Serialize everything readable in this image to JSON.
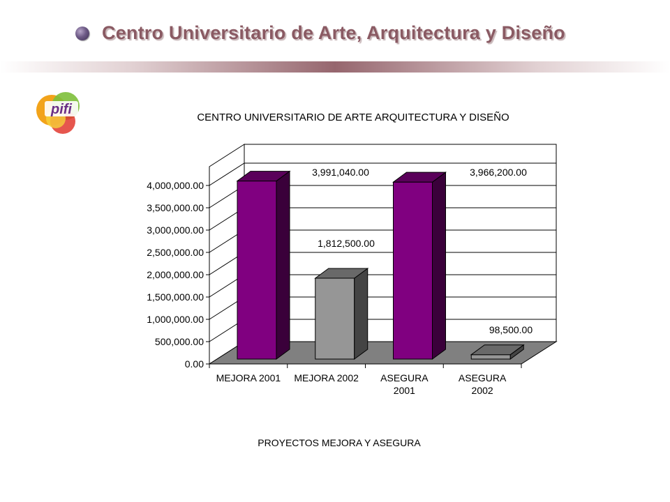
{
  "header": {
    "title": "Centro Universitario de Arte, Arquitectura y Diseño"
  },
  "logo": {
    "text": "pifi",
    "icon": "pifi-logo"
  },
  "colors": {
    "title": "#8a5a63",
    "bar_purple": "#800080",
    "bar_gray": "#969696",
    "floor": "#808080"
  },
  "chart_data": {
    "type": "bar",
    "title": "CENTRO UNIVERSITARIO DE ARTE ARQUITECTURA Y DISEÑO",
    "xlabel": "PROYECTOS MEJORA Y ASEGURA",
    "ylabel": "",
    "categories": [
      "MEJORA 2001",
      "MEJORA 2002",
      "ASEGURA 2001",
      "ASEGURA 2002"
    ],
    "category_lines": [
      [
        "MEJORA 2001"
      ],
      [
        "MEJORA 2002"
      ],
      [
        "ASEGURA",
        "2001"
      ],
      [
        "ASEGURA",
        "2002"
      ]
    ],
    "values": [
      3991040,
      1812500,
      3966200,
      98500
    ],
    "value_labels": [
      "3,991,040.00",
      "1,812,500.00",
      "3,966,200.00",
      "98,500.00"
    ],
    "bar_colors": [
      "#800080",
      "#969696",
      "#800080",
      "#969696"
    ],
    "ylim": [
      0,
      4000000
    ],
    "yticks": [
      0,
      500000,
      1000000,
      1500000,
      2000000,
      2500000,
      3000000,
      3500000,
      4000000
    ],
    "ytick_labels": [
      "0.00",
      "500,000.00",
      "1,000,000.00",
      "1,500,000.00",
      "2,000,000.00",
      "2,500,000.00",
      "3,000,000.00",
      "3,500,000.00",
      "4,000,000.00"
    ],
    "grid": true,
    "style": "3d-bar"
  }
}
